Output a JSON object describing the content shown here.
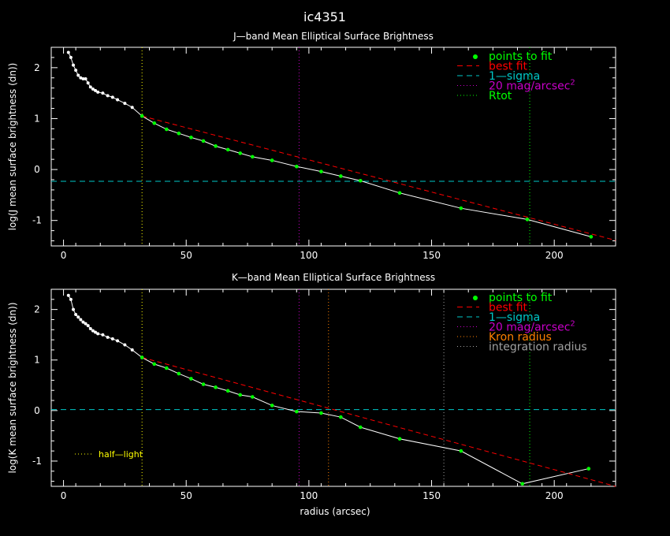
{
  "figure": {
    "title": "ic4351",
    "xlabel": "radius (arcsec)"
  },
  "chart_data": [
    {
      "type": "scatter",
      "title": "J—band Mean Elliptical Surface Brightness",
      "xlabel": "",
      "ylabel": "log(J mean surface brightness (dn))",
      "xlim": [
        -5,
        225
      ],
      "ylim": [
        -1.5,
        2.4
      ],
      "xticks": [
        0,
        50,
        100,
        150,
        200
      ],
      "yticks": [
        -1,
        0,
        1,
        2
      ],
      "colors": {
        "profile": "#ffffff",
        "fit_points": "#00ff00",
        "best_fit": "#ff0000",
        "sigma": "#00c8c8",
        "mag20": "#c800c8",
        "rtot": "#00ff00",
        "half_light": "#ffff00"
      },
      "legend": {
        "position": "top-right",
        "items": [
          {
            "label": "points to fit",
            "color": "#00ff00",
            "marker": "dot"
          },
          {
            "label": "best fit",
            "color": "#ff0000",
            "marker": "dash"
          },
          {
            "label": "1—sigma",
            "color": "#00c8c8",
            "marker": "dash"
          },
          {
            "label": "20 mag/arcsec",
            "sup": "2",
            "color": "#c800c8",
            "marker": "dot-line"
          },
          {
            "label": "Rtot",
            "color": "#00ff00",
            "marker": "dot-line"
          }
        ]
      },
      "profile": {
        "x": [
          2,
          3,
          4,
          5,
          6,
          7,
          8,
          9,
          10,
          11,
          12,
          13,
          14,
          16,
          18,
          20,
          22,
          25,
          28,
          32,
          37,
          42,
          47,
          52,
          57,
          62,
          67,
          72,
          77,
          85,
          95,
          105,
          113,
          121,
          137,
          162,
          189,
          215
        ],
        "y": [
          2.3,
          2.2,
          2.05,
          1.95,
          1.85,
          1.8,
          1.78,
          1.78,
          1.7,
          1.62,
          1.58,
          1.55,
          1.52,
          1.5,
          1.45,
          1.42,
          1.37,
          1.3,
          1.22,
          1.05,
          0.91,
          0.79,
          0.71,
          0.63,
          0.56,
          0.46,
          0.39,
          0.32,
          0.25,
          0.18,
          0.06,
          -0.04,
          -0.13,
          -0.22,
          -0.46,
          -0.76,
          -0.98,
          -1.32
        ]
      },
      "fit_points": {
        "x": [
          32,
          37,
          42,
          47,
          52,
          57,
          62,
          67,
          72,
          77,
          85,
          95,
          105,
          113,
          121,
          137,
          162,
          189,
          215
        ],
        "y": [
          1.05,
          0.91,
          0.79,
          0.71,
          0.63,
          0.56,
          0.46,
          0.39,
          0.32,
          0.25,
          0.18,
          0.06,
          -0.04,
          -0.13,
          -0.22,
          -0.46,
          -0.76,
          -0.98,
          -1.32
        ]
      },
      "best_fit": {
        "x": [
          32,
          225
        ],
        "y": [
          1.05,
          -1.39
        ]
      },
      "sigma_level": -0.23,
      "vlines": [
        {
          "name": "half-light",
          "x": 32,
          "color": "#ffff00"
        },
        {
          "name": "20mag",
          "x": 96,
          "color": "#c800c8"
        },
        {
          "name": "rtot",
          "x": 190,
          "color": "#00ff00"
        }
      ]
    },
    {
      "type": "scatter",
      "title": "K—band Mean Elliptical Surface Brightness",
      "xlabel": "radius (arcsec)",
      "ylabel": "log(K mean surface brightness (dn))",
      "xlim": [
        -5,
        225
      ],
      "ylim": [
        -1.5,
        2.4
      ],
      "xticks": [
        0,
        50,
        100,
        150,
        200
      ],
      "yticks": [
        -1,
        0,
        1,
        2
      ],
      "colors": {
        "profile": "#ffffff",
        "fit_points": "#00ff00",
        "best_fit": "#ff0000",
        "sigma": "#00c8c8",
        "mag20": "#c800c8",
        "kron": "#ff8000",
        "integ": "#a0a0a0",
        "rtot": "#00ff00",
        "half_light": "#ffff00"
      },
      "legend": {
        "position": "top-right",
        "items": [
          {
            "label": "points to fit",
            "color": "#00ff00",
            "marker": "dot"
          },
          {
            "label": "best fit",
            "color": "#ff0000",
            "marker": "dash"
          },
          {
            "label": "1—sigma",
            "color": "#00c8c8",
            "marker": "dash"
          },
          {
            "label": "20 mag/arcsec",
            "sup": "2",
            "color": "#c800c8",
            "marker": "dot-line"
          },
          {
            "label": "Kron radius",
            "color": "#ff8000",
            "marker": "dot-line"
          },
          {
            "label": "integration radius",
            "color": "#a0a0a0",
            "marker": "dot-line"
          }
        ]
      },
      "annotation": {
        "label": "half—light",
        "color": "#ffff00",
        "position": "lower-left"
      },
      "profile": {
        "x": [
          2,
          3,
          4,
          5,
          6,
          7,
          8,
          9,
          10,
          11,
          12,
          13,
          14,
          16,
          18,
          20,
          22,
          25,
          28,
          32,
          37,
          42,
          47,
          52,
          57,
          62,
          67,
          72,
          77,
          85,
          95,
          105,
          113,
          121,
          137,
          162,
          187,
          214
        ],
        "y": [
          2.28,
          2.2,
          2.0,
          1.9,
          1.85,
          1.8,
          1.75,
          1.72,
          1.68,
          1.62,
          1.58,
          1.55,
          1.52,
          1.5,
          1.45,
          1.42,
          1.38,
          1.3,
          1.2,
          1.05,
          0.92,
          0.84,
          0.73,
          0.63,
          0.52,
          0.46,
          0.39,
          0.31,
          0.27,
          0.1,
          -0.02,
          -0.05,
          -0.13,
          -0.33,
          -0.56,
          -0.8,
          -1.45,
          -1.15
        ]
      },
      "fit_points": {
        "x": [
          32,
          37,
          42,
          47,
          52,
          57,
          62,
          67,
          72,
          77,
          85,
          95,
          105,
          113,
          121,
          137,
          162,
          187,
          214
        ],
        "y": [
          1.05,
          0.92,
          0.84,
          0.73,
          0.63,
          0.52,
          0.46,
          0.39,
          0.31,
          0.27,
          0.1,
          -0.02,
          -0.05,
          -0.13,
          -0.33,
          -0.56,
          -0.8,
          -1.45,
          -1.15
        ]
      },
      "best_fit": {
        "x": [
          32,
          225
        ],
        "y": [
          1.05,
          -1.5
        ]
      },
      "sigma_level": 0.02,
      "vlines": [
        {
          "name": "half-light",
          "x": 32,
          "color": "#ffff00"
        },
        {
          "name": "20mag",
          "x": 96,
          "color": "#c800c8"
        },
        {
          "name": "kron",
          "x": 108,
          "color": "#ff8000"
        },
        {
          "name": "integration",
          "x": 155,
          "color": "#a0a0a0"
        },
        {
          "name": "rtot",
          "x": 190,
          "color": "#00ff00"
        }
      ]
    }
  ]
}
